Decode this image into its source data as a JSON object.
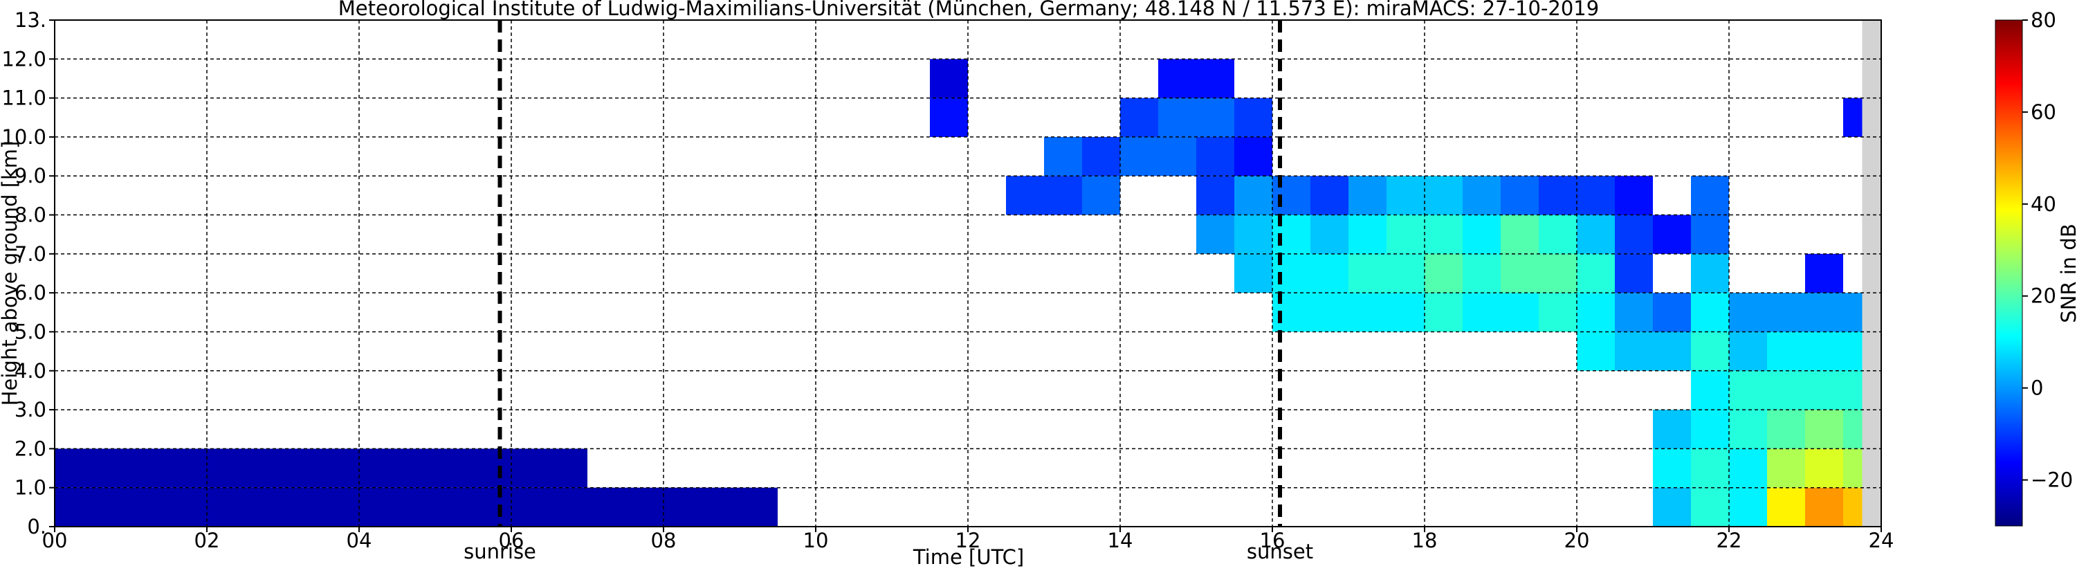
{
  "chart_data": {
    "type": "heatmap",
    "title": "Meteorological Institute of Ludwig-Maximilians-Universität (München, Germany; 48.148 N / 11.573 E):    miraMACS: 27-10-2019",
    "x_label": "Time [UTC]",
    "y_label": "Height above ground [km]",
    "colorbar_label": "SNR in dB",
    "xlim": [
      0,
      24
    ],
    "ylim": [
      0,
      13
    ],
    "xticks": [
      {
        "value": 0,
        "label": "00"
      },
      {
        "value": 2,
        "label": "02"
      },
      {
        "value": 4,
        "label": "04"
      },
      {
        "value": 6,
        "label": "06"
      },
      {
        "value": 8,
        "label": "08"
      },
      {
        "value": 10,
        "label": "10"
      },
      {
        "value": 12,
        "label": "12"
      },
      {
        "value": 14,
        "label": "14"
      },
      {
        "value": 16,
        "label": "16"
      },
      {
        "value": 18,
        "label": "18"
      },
      {
        "value": 20,
        "label": "20"
      },
      {
        "value": 22,
        "label": "22"
      },
      {
        "value": 24,
        "label": "24"
      }
    ],
    "yticks": [
      {
        "value": 0,
        "label": "0."
      },
      {
        "value": 1,
        "label": "1.0"
      },
      {
        "value": 2,
        "label": "2.0"
      },
      {
        "value": 3,
        "label": "3.0"
      },
      {
        "value": 4,
        "label": "4.0"
      },
      {
        "value": 5,
        "label": "5.0"
      },
      {
        "value": 6,
        "label": "6.0"
      },
      {
        "value": 7,
        "label": "7.0"
      },
      {
        "value": 8,
        "label": "8.0"
      },
      {
        "value": 9,
        "label": "9.0"
      },
      {
        "value": 10,
        "label": "10.0"
      },
      {
        "value": 11,
        "label": "11.0"
      },
      {
        "value": 12,
        "label": "12.0"
      },
      {
        "value": 13,
        "label": "13."
      }
    ],
    "grid": true,
    "clim": [
      -30,
      80
    ],
    "cticks": [
      {
        "value": -20,
        "label": "−20"
      },
      0,
      20,
      40,
      60,
      80
    ],
    "colormap": [
      "#000080",
      "#0000ff",
      "#0080ff",
      "#00ffff",
      "#80ff80",
      "#ffff00",
      "#ff8000",
      "#ff0000",
      "#800000"
    ],
    "events": [
      {
        "x": 5.85,
        "label": "sunrise"
      },
      {
        "x": 16.1,
        "label": "sunset"
      }
    ],
    "missing_data": {
      "start": 23.75,
      "end": 24,
      "color": "#d3d3d3"
    },
    "x_edges": [
      0,
      0.5,
      1,
      1.5,
      2,
      2.5,
      3,
      3.5,
      4,
      4.5,
      5,
      5.5,
      6,
      6.5,
      7,
      7.5,
      8,
      8.5,
      9,
      9.5,
      10,
      10.5,
      11,
      11.5,
      12,
      12.5,
      13,
      13.5,
      14,
      14.5,
      15,
      15.5,
      16,
      16.5,
      17,
      17.5,
      18,
      18.5,
      19,
      19.5,
      20,
      20.5,
      21,
      21.5,
      22,
      22.5,
      23,
      23.5,
      24
    ],
    "y_edges": [
      0,
      1,
      2,
      3,
      4,
      5,
      6,
      7,
      8,
      9,
      10,
      11,
      12,
      13
    ],
    "values": [
      [
        -25,
        -25,
        -25,
        -25,
        -25,
        -25,
        -25,
        -25,
        -25,
        -25,
        -25,
        -25,
        -25,
        -25,
        -25,
        -25,
        -25,
        -25,
        -25,
        null,
        null,
        null,
        null,
        null,
        null,
        null,
        null,
        null,
        null,
        null,
        null,
        null,
        null,
        null,
        null,
        null,
        null,
        null,
        null,
        null,
        null,
        null,
        5,
        15,
        10,
        40,
        50,
        45
      ],
      [
        -25,
        -25,
        -25,
        -25,
        -25,
        -25,
        -25,
        -25,
        -25,
        -25,
        -25,
        -25,
        -25,
        -25,
        null,
        null,
        null,
        null,
        null,
        null,
        null,
        null,
        null,
        null,
        null,
        null,
        null,
        null,
        null,
        null,
        null,
        null,
        null,
        null,
        null,
        null,
        null,
        null,
        null,
        null,
        null,
        null,
        10,
        15,
        10,
        30,
        35,
        30
      ],
      [
        null,
        null,
        null,
        null,
        null,
        null,
        null,
        null,
        null,
        null,
        null,
        null,
        null,
        null,
        null,
        null,
        null,
        null,
        null,
        null,
        null,
        null,
        null,
        null,
        null,
        null,
        null,
        null,
        null,
        null,
        null,
        null,
        null,
        null,
        null,
        null,
        null,
        null,
        null,
        null,
        null,
        null,
        5,
        10,
        15,
        20,
        25,
        20
      ],
      [
        null,
        null,
        null,
        null,
        null,
        null,
        null,
        null,
        null,
        null,
        null,
        null,
        null,
        null,
        null,
        null,
        null,
        null,
        null,
        null,
        null,
        null,
        null,
        null,
        null,
        null,
        null,
        null,
        null,
        null,
        null,
        null,
        null,
        null,
        null,
        null,
        null,
        null,
        null,
        null,
        null,
        null,
        null,
        10,
        15,
        15,
        15,
        15
      ],
      [
        null,
        null,
        null,
        null,
        null,
        null,
        null,
        null,
        null,
        null,
        null,
        null,
        null,
        null,
        null,
        null,
        null,
        null,
        null,
        null,
        null,
        null,
        null,
        null,
        null,
        null,
        null,
        null,
        null,
        null,
        null,
        null,
        null,
        null,
        null,
        null,
        null,
        null,
        null,
        null,
        10,
        5,
        5,
        15,
        5,
        10,
        10,
        10
      ],
      [
        null,
        null,
        null,
        null,
        null,
        null,
        null,
        null,
        null,
        null,
        null,
        null,
        null,
        null,
        null,
        null,
        null,
        null,
        null,
        null,
        null,
        null,
        null,
        null,
        null,
        null,
        null,
        null,
        null,
        null,
        null,
        null,
        10,
        10,
        10,
        10,
        15,
        10,
        10,
        15,
        10,
        0,
        -5,
        10,
        0,
        0,
        0,
        0
      ],
      [
        null,
        null,
        null,
        null,
        null,
        null,
        null,
        null,
        null,
        null,
        null,
        null,
        null,
        null,
        null,
        null,
        null,
        null,
        null,
        null,
        null,
        null,
        null,
        null,
        null,
        null,
        null,
        null,
        null,
        null,
        null,
        5,
        10,
        10,
        15,
        15,
        20,
        15,
        20,
        20,
        15,
        -10,
        null,
        5,
        null,
        null,
        -15,
        null
      ],
      [
        null,
        null,
        null,
        null,
        null,
        null,
        null,
        null,
        null,
        null,
        null,
        null,
        null,
        null,
        null,
        null,
        null,
        null,
        null,
        null,
        null,
        null,
        null,
        null,
        null,
        null,
        null,
        null,
        null,
        null,
        0,
        5,
        10,
        5,
        10,
        15,
        15,
        10,
        20,
        15,
        5,
        -10,
        -15,
        -5,
        null,
        null,
        null,
        null
      ],
      [
        null,
        null,
        null,
        null,
        null,
        null,
        null,
        null,
        null,
        null,
        null,
        null,
        null,
        null,
        null,
        null,
        null,
        null,
        null,
        null,
        null,
        null,
        null,
        null,
        null,
        -10,
        -10,
        -5,
        null,
        null,
        -10,
        0,
        -5,
        -10,
        0,
        5,
        5,
        0,
        -5,
        -10,
        -10,
        -15,
        null,
        -5,
        null,
        null,
        null,
        null
      ],
      [
        null,
        null,
        null,
        null,
        null,
        null,
        null,
        null,
        null,
        null,
        null,
        null,
        null,
        null,
        null,
        null,
        null,
        null,
        null,
        null,
        null,
        null,
        null,
        null,
        null,
        null,
        -5,
        -10,
        -5,
        -5,
        -10,
        -15,
        null,
        null,
        null,
        null,
        null,
        null,
        null,
        null,
        null,
        null,
        null,
        null,
        null,
        null,
        null,
        null
      ],
      [
        null,
        null,
        null,
        null,
        null,
        null,
        null,
        null,
        null,
        null,
        null,
        null,
        null,
        null,
        null,
        null,
        null,
        null,
        null,
        null,
        null,
        null,
        null,
        -15,
        null,
        null,
        null,
        null,
        -10,
        -5,
        -5,
        -10,
        null,
        null,
        null,
        null,
        null,
        null,
        null,
        null,
        null,
        null,
        null,
        null,
        null,
        null,
        null,
        -15
      ],
      [
        null,
        null,
        null,
        null,
        null,
        null,
        null,
        null,
        null,
        null,
        null,
        null,
        null,
        null,
        null,
        null,
        null,
        null,
        null,
        null,
        null,
        null,
        null,
        -20,
        null,
        null,
        null,
        null,
        null,
        -15,
        -15,
        null,
        null,
        null,
        null,
        null,
        null,
        null,
        null,
        null,
        null,
        null,
        null,
        null,
        null,
        null,
        null,
        null
      ],
      [
        null,
        null,
        null,
        null,
        null,
        null,
        null,
        null,
        null,
        null,
        null,
        null,
        null,
        null,
        null,
        null,
        null,
        null,
        null,
        null,
        null,
        null,
        null,
        null,
        null,
        null,
        null,
        null,
        null,
        null,
        null,
        null,
        null,
        null,
        null,
        null,
        null,
        null,
        null,
        null,
        null,
        null,
        null,
        null,
        null,
        null,
        null,
        null
      ]
    ]
  }
}
